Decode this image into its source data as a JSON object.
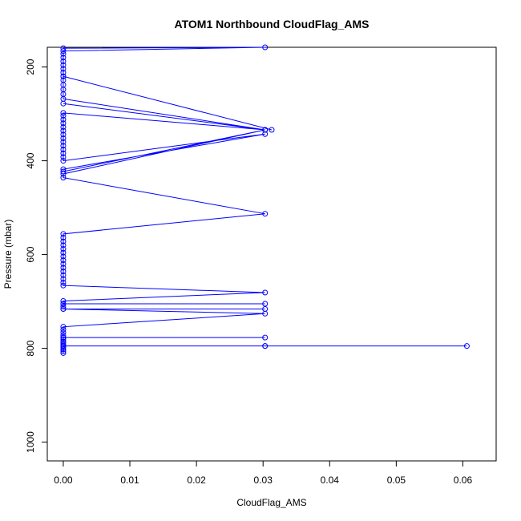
{
  "chart_data": {
    "type": "line",
    "title": "ATOM1 Northbound CloudFlag_AMS",
    "xlabel": "CloudFlag_AMS",
    "ylabel": "Pressure (mbar)",
    "xlim": [
      -0.0024,
      0.065
    ],
    "ylim": [
      1040,
      158
    ],
    "y_reversed": true,
    "x_ticks": [
      0.0,
      0.01,
      0.02,
      0.03,
      0.04,
      0.05,
      0.06
    ],
    "x_tick_labels": [
      "0.00",
      "0.01",
      "0.02",
      "0.03",
      "0.04",
      "0.05",
      "0.06"
    ],
    "y_ticks": [
      200,
      400,
      600,
      800,
      1000
    ],
    "y_tick_labels": [
      "200",
      "400",
      "600",
      "800",
      "1000"
    ],
    "grid": false,
    "legend": "none",
    "series": [
      {
        "color": "#0000ff",
        "marker": "open-circle",
        "line": true,
        "points": [
          [
            0,
            810
          ],
          [
            0,
            806
          ],
          [
            0,
            802
          ],
          [
            0,
            798
          ],
          [
            0,
            795
          ],
          [
            0.0303,
            795
          ],
          [
            0.0303,
            795
          ],
          [
            0.0606,
            795
          ],
          [
            0,
            795
          ],
          [
            0,
            792
          ],
          [
            0,
            788
          ],
          [
            0,
            785
          ],
          [
            0,
            781
          ],
          [
            0,
            777
          ],
          [
            0.0303,
            777
          ],
          [
            0,
            777
          ],
          [
            0,
            772
          ],
          [
            0,
            766
          ],
          [
            0,
            760
          ],
          [
            0,
            754
          ],
          [
            0.0303,
            726
          ],
          [
            0,
            716
          ],
          [
            0.0303,
            716
          ],
          [
            0,
            716
          ],
          [
            0,
            711
          ],
          [
            0,
            705
          ],
          [
            0.0303,
            705
          ],
          [
            0,
            705
          ],
          [
            0,
            699
          ],
          [
            0.0303,
            681
          ],
          [
            0,
            666
          ],
          [
            0,
            660
          ],
          [
            0,
            652
          ],
          [
            0,
            644
          ],
          [
            0,
            636
          ],
          [
            0,
            628
          ],
          [
            0,
            620
          ],
          [
            0,
            612
          ],
          [
            0,
            604
          ],
          [
            0,
            596
          ],
          [
            0,
            588
          ],
          [
            0,
            580
          ],
          [
            0,
            572
          ],
          [
            0,
            564
          ],
          [
            0,
            556
          ],
          [
            0.0303,
            513
          ],
          [
            0,
            436
          ],
          [
            0,
            428
          ],
          [
            0.0303,
            334
          ],
          [
            0,
            423
          ],
          [
            0,
            418
          ],
          [
            0.0303,
            343
          ],
          [
            0,
            400
          ],
          [
            0,
            392
          ],
          [
            0,
            384
          ],
          [
            0,
            376
          ],
          [
            0,
            368
          ],
          [
            0,
            360
          ],
          [
            0,
            352
          ],
          [
            0,
            344
          ],
          [
            0,
            336
          ],
          [
            0,
            328
          ],
          [
            0,
            320
          ],
          [
            0,
            312
          ],
          [
            0,
            304
          ],
          [
            0,
            298
          ],
          [
            0.0303,
            334
          ],
          [
            0,
            278
          ],
          [
            0.0303,
            334
          ],
          [
            0,
            268
          ],
          [
            0,
            258
          ],
          [
            0,
            248
          ],
          [
            0,
            238
          ],
          [
            0,
            228
          ],
          [
            0,
            220
          ],
          [
            0.0313,
            334
          ],
          [
            0,
            220
          ],
          [
            0,
            212
          ],
          [
            0,
            204
          ],
          [
            0,
            196
          ],
          [
            0,
            188
          ],
          [
            0,
            180
          ],
          [
            0,
            172
          ],
          [
            0,
            166
          ],
          [
            0.0303,
            158
          ],
          [
            0,
            160
          ]
        ]
      }
    ]
  }
}
